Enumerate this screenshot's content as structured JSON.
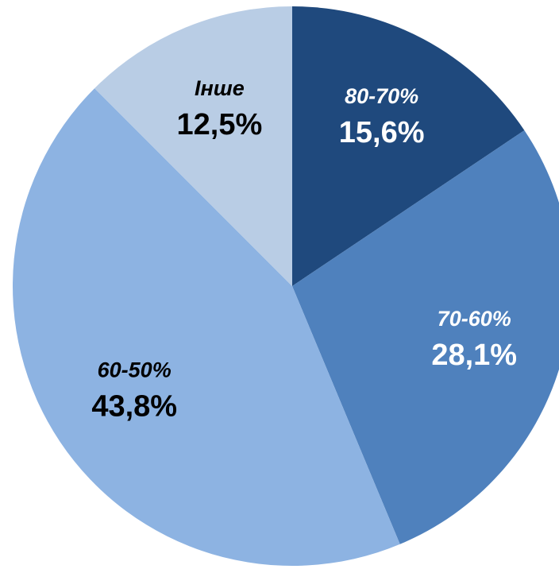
{
  "chart_data": {
    "type": "pie",
    "categories": [
      "80-70%",
      "70-60%",
      "60-50%",
      "Інше"
    ],
    "values": [
      15.6,
      28.1,
      43.8,
      12.5
    ],
    "value_labels": [
      "15,6%",
      "28,1%",
      "43,8%",
      "12,5%"
    ],
    "colors": [
      "#1f497d",
      "#4f81bd",
      "#8db3e2",
      "#b9cde5"
    ]
  }
}
